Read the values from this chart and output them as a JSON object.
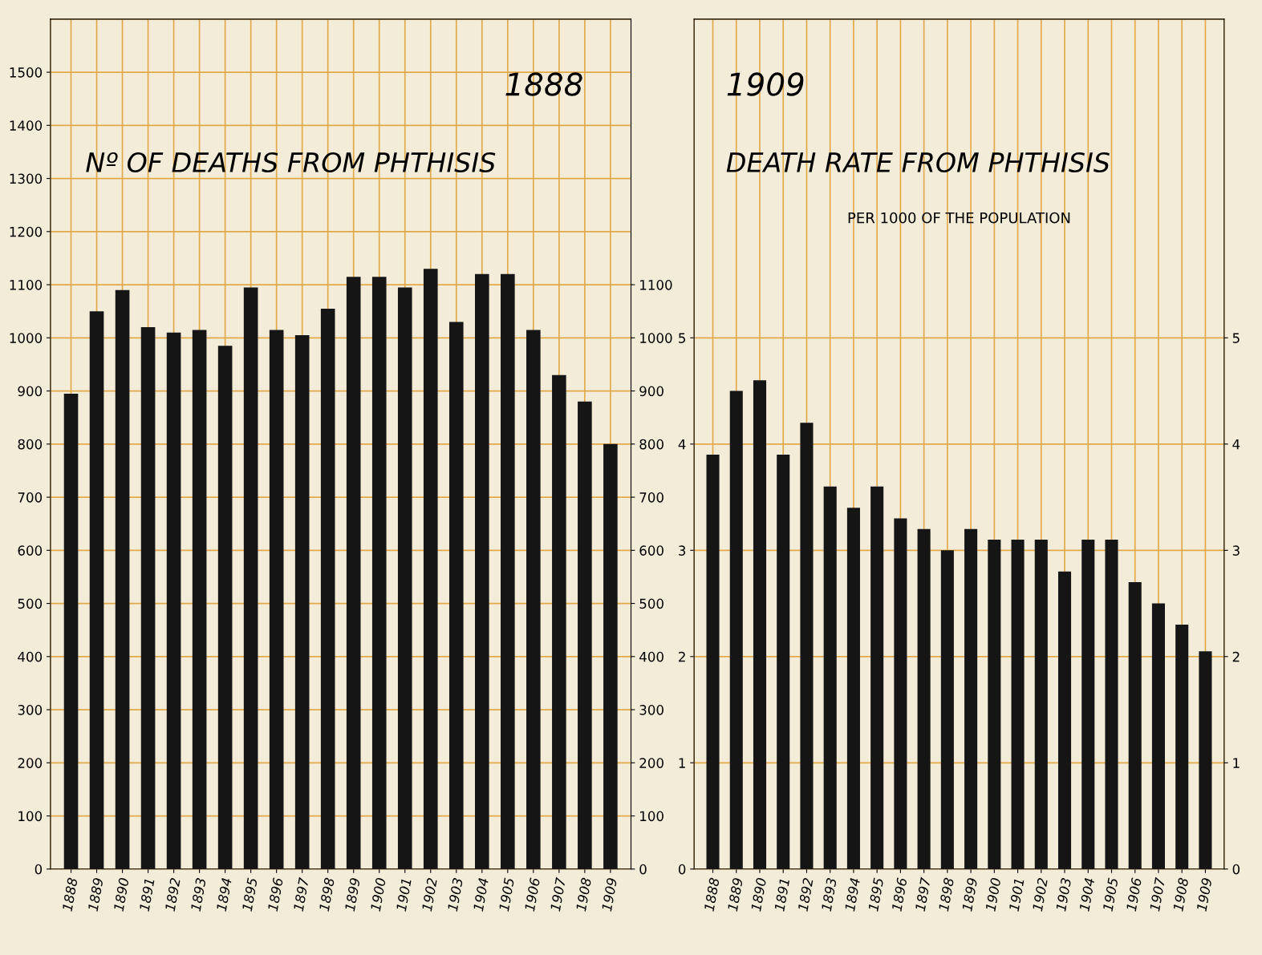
{
  "chart_data": [
    {
      "type": "bar",
      "title": "Nº OF DEATHS FROM PHTHISIS",
      "annotations": [
        "1888"
      ],
      "categories": [
        "1888",
        "1889",
        "1890",
        "1891",
        "1892",
        "1893",
        "1894",
        "1895",
        "1896",
        "1897",
        "1898",
        "1899",
        "1900",
        "1901",
        "1902",
        "1903",
        "1904",
        "1905",
        "1906",
        "1907",
        "1908",
        "1909"
      ],
      "series": [
        {
          "color": "#151515",
          "values": [
            895,
            1050,
            1090,
            1020,
            1010,
            1015,
            985,
            1095,
            1015,
            1005,
            1055,
            1115,
            1115,
            1095,
            1130,
            1030,
            1120,
            1120,
            1015,
            930,
            880,
            800
          ]
        }
      ],
      "ylim": [
        0,
        1600
      ],
      "yticks": [
        0,
        100,
        200,
        300,
        400,
        500,
        600,
        700,
        800,
        900,
        1000,
        1100,
        1200,
        1300,
        1400,
        1500
      ],
      "y2lim": [
        0,
        1600
      ],
      "y2ticks": [
        0,
        100,
        200,
        300,
        400,
        500,
        600,
        700,
        800,
        900,
        1000,
        1100
      ],
      "grid": true
    },
    {
      "type": "bar",
      "title": "DEATH RATE FROM PHTHISIS",
      "subtitle": "PER 1000 OF THE POPULATION",
      "annotations": [
        "1909"
      ],
      "categories": [
        "1888",
        "1889",
        "1890",
        "1891",
        "1892",
        "1893",
        "1894",
        "1895",
        "1896",
        "1897",
        "1898",
        "1899",
        "1900",
        "1901",
        "1902",
        "1903",
        "1904",
        "1905",
        "1906",
        "1907",
        "1908",
        "1909"
      ],
      "series": [
        {
          "color": "#151515",
          "values": [
            3.9,
            4.5,
            4.6,
            3.9,
            4.2,
            3.6,
            3.4,
            3.6,
            3.3,
            3.2,
            3.0,
            3.2,
            3.1,
            3.1,
            3.1,
            2.8,
            3.1,
            3.1,
            2.7,
            2.5,
            2.3,
            2.05
          ]
        }
      ],
      "ylim": [
        0,
        8
      ],
      "yticks": [
        0,
        1,
        2,
        3,
        4,
        5
      ],
      "y2lim": [
        0,
        8
      ],
      "y2ticks": [
        0,
        1,
        2,
        3,
        4,
        5
      ],
      "grid": true
    }
  ]
}
